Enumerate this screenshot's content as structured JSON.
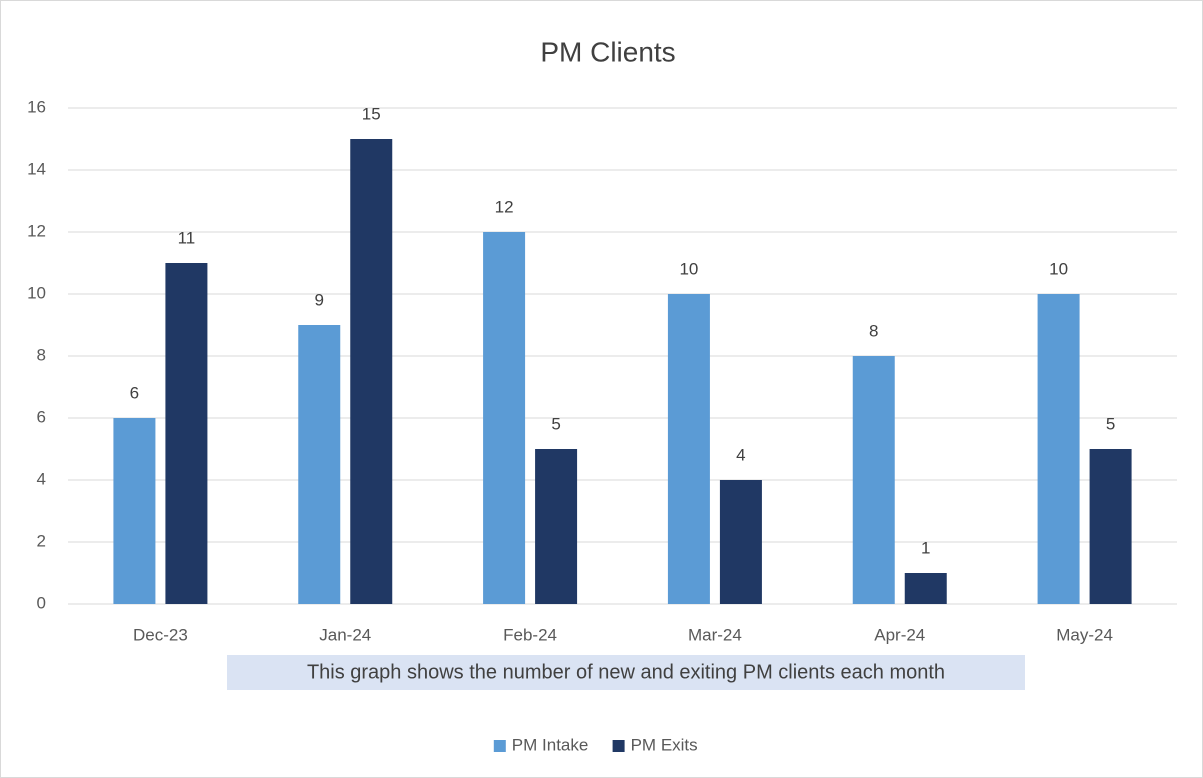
{
  "chart_data": {
    "type": "bar",
    "title": "PM Clients",
    "categories": [
      "Dec-23",
      "Jan-24",
      "Feb-24",
      "Mar-24",
      "Apr-24",
      "May-24"
    ],
    "series": [
      {
        "name": "PM Intake",
        "color": "#5b9bd5",
        "values": [
          6,
          9,
          12,
          10,
          8,
          10
        ]
      },
      {
        "name": "PM Exits",
        "color": "#203864",
        "values": [
          11,
          15,
          5,
          4,
          1,
          5
        ]
      }
    ],
    "ylim": [
      0,
      16
    ],
    "yticks": [
      0,
      2,
      4,
      6,
      8,
      10,
      12,
      14,
      16
    ],
    "grid": true,
    "annotation": "This graph shows the number of new and exiting PM clients each month",
    "legend": "bottom"
  }
}
